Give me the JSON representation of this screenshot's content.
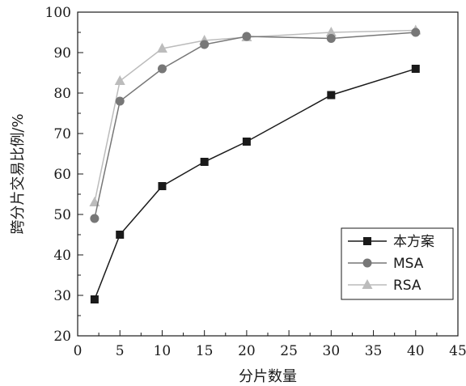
{
  "chart_data": {
    "type": "line",
    "xlabel": "分片数量",
    "ylabel": "跨分片交易比例/%",
    "xlim": [
      0,
      45
    ],
    "ylim": [
      20,
      100
    ],
    "x_ticks": [
      "0",
      "5",
      "10",
      "15",
      "20",
      "25",
      "30",
      "35",
      "40",
      "45"
    ],
    "y_ticks": [
      "20",
      "30",
      "40",
      "50",
      "60",
      "70",
      "80",
      "90",
      "100"
    ],
    "grid": false,
    "legend_position": "bottom-right",
    "series": [
      {
        "name": "本方案",
        "marker": "square",
        "color": "#1a1a1a",
        "x": [
          2,
          5,
          10,
          15,
          20,
          30,
          40
        ],
        "y": [
          29,
          45,
          57,
          63,
          68,
          79.5,
          86
        ]
      },
      {
        "name": "MSA",
        "marker": "circle",
        "color": "#777777",
        "x": [
          2,
          5,
          10,
          15,
          20,
          30,
          40
        ],
        "y": [
          49,
          78,
          86,
          92,
          94,
          93.5,
          95
        ]
      },
      {
        "name": "RSA",
        "marker": "triangle",
        "color": "#bcbcbc",
        "x": [
          2,
          5,
          10,
          15,
          20,
          30,
          40
        ],
        "y": [
          53,
          83,
          91,
          93,
          93.8,
          95,
          95.5
        ]
      }
    ]
  }
}
